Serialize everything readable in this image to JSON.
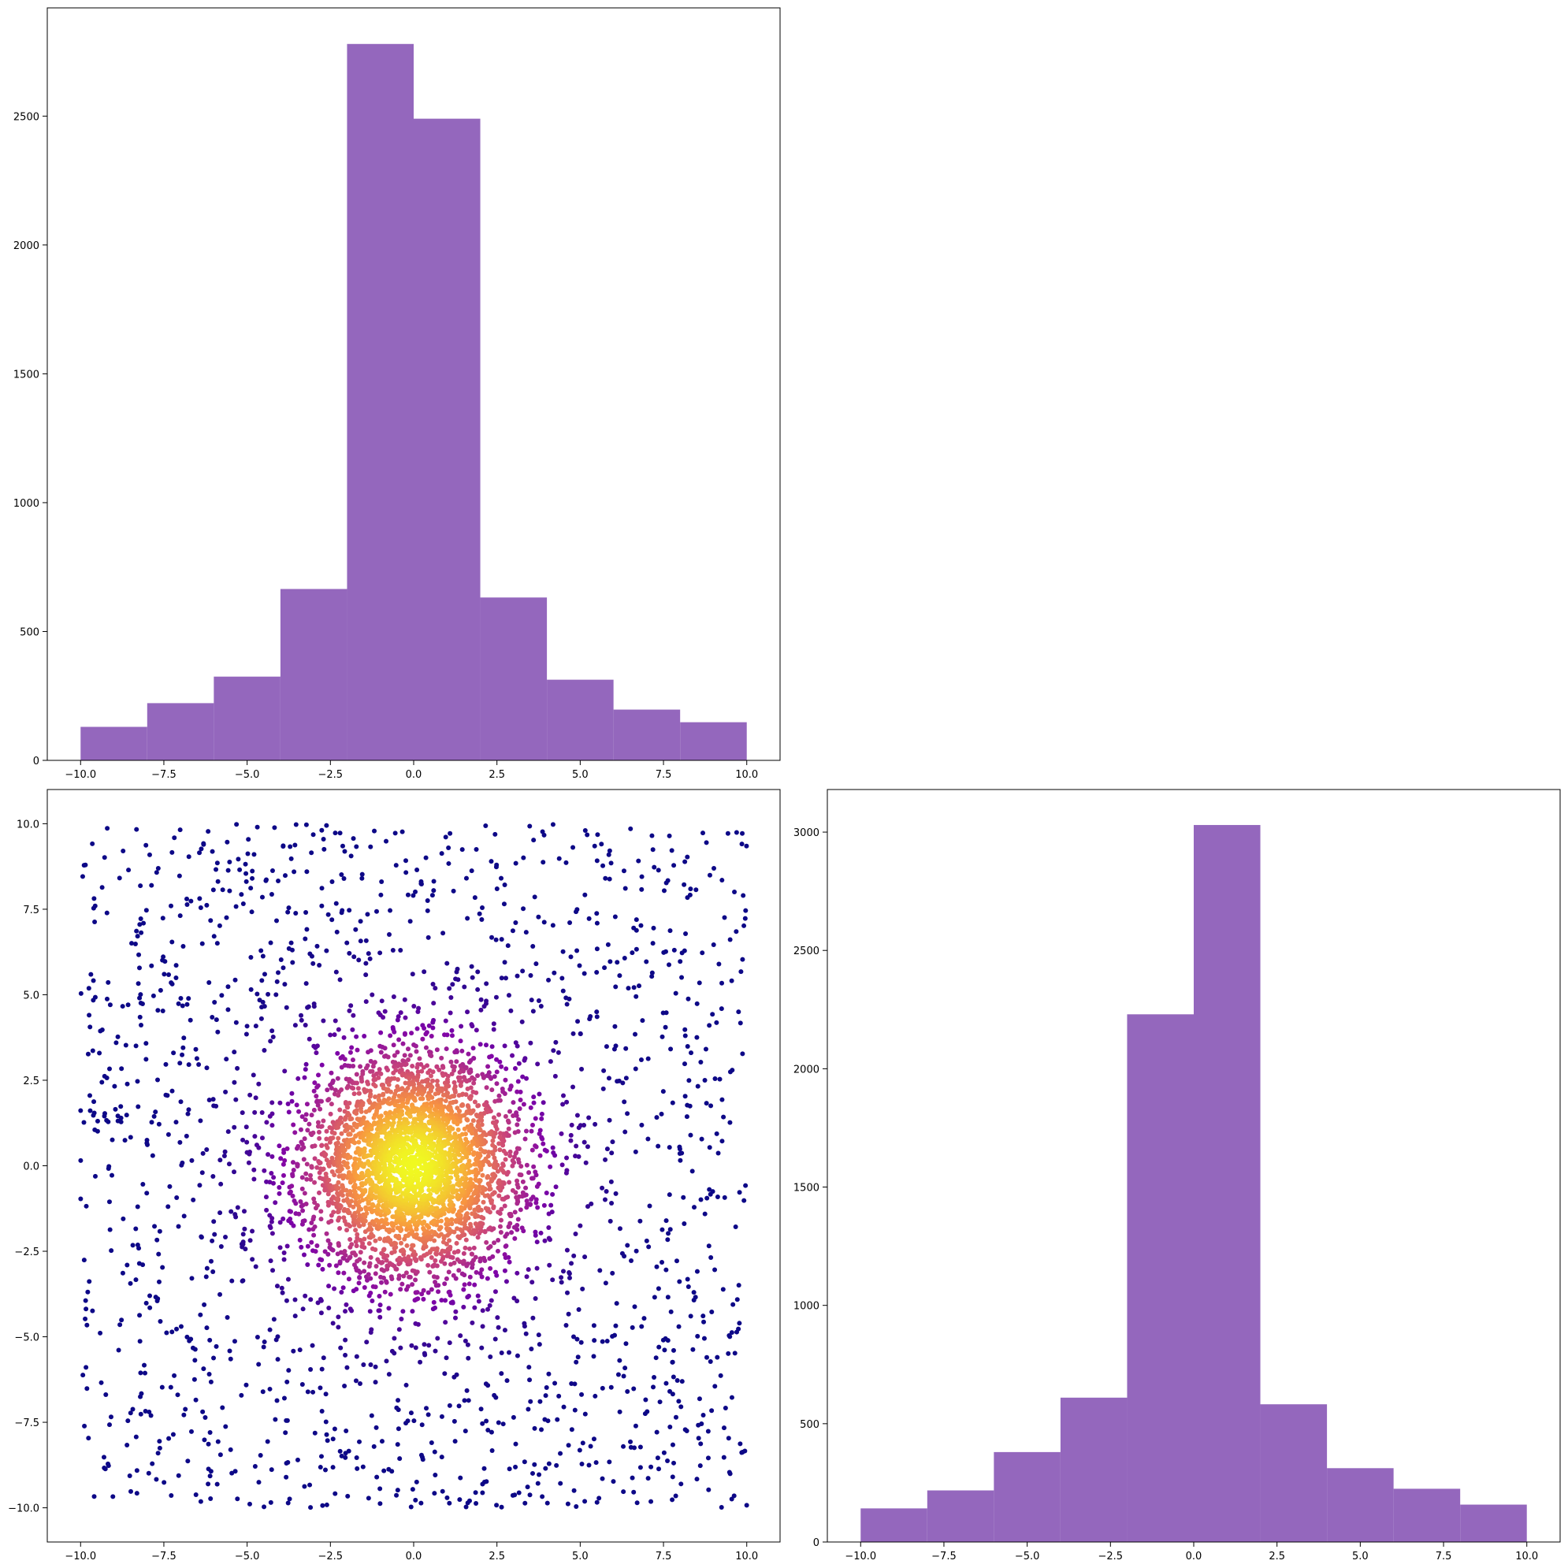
{
  "colors": {
    "hist_fill": "#9467bd",
    "scatter_colormap": "plasma",
    "axes_edge": "#000000",
    "background": "#ffffff"
  },
  "chart_data": [
    {
      "id": "hist-x",
      "type": "bar",
      "bin_edges": [
        -10,
        -8,
        -6,
        -4,
        -2,
        0,
        2,
        4,
        6,
        8,
        10
      ],
      "values": [
        130,
        222,
        325,
        665,
        2780,
        2490,
        632,
        313,
        197,
        148
      ],
      "xlim": [
        -11,
        11
      ],
      "ylim": [
        0,
        2920
      ],
      "xticks": [
        -10.0,
        -7.5,
        -5.0,
        -2.5,
        0.0,
        2.5,
        5.0,
        7.5,
        10.0
      ],
      "xtick_labels": [
        "−10.0",
        "−7.5",
        "−5.0",
        "−2.5",
        "0.0",
        "2.5",
        "5.0",
        "7.5",
        "10.0"
      ],
      "yticks": [
        0,
        500,
        1000,
        1500,
        2000,
        2500
      ],
      "ytick_labels": [
        "0",
        "500",
        "1000",
        "1500",
        "2000",
        "2500"
      ],
      "grid": false
    },
    {
      "id": "scatter-xy",
      "type": "scatter",
      "n_points": 5000,
      "distribution": "dense gaussian core centered at (0,0) with uniform background over [-10,10] x [-10,10]",
      "color_by": "point density (plasma colormap)",
      "xlim": [
        -11,
        11
      ],
      "ylim": [
        -11,
        11
      ],
      "xticks": [
        -10.0,
        -7.5,
        -5.0,
        -2.5,
        0.0,
        2.5,
        5.0,
        7.5,
        10.0
      ],
      "xtick_labels": [
        "−10.0",
        "−7.5",
        "−5.0",
        "−2.5",
        "0.0",
        "2.5",
        "5.0",
        "7.5",
        "10.0"
      ],
      "yticks": [
        -10.0,
        -7.5,
        -5.0,
        -2.5,
        0.0,
        2.5,
        5.0,
        7.5,
        10.0
      ],
      "ytick_labels": [
        "−10.0",
        "−7.5",
        "−5.0",
        "−2.5",
        "0.0",
        "2.5",
        "5.0",
        "7.5",
        "10.0"
      ],
      "grid": false
    },
    {
      "id": "hist-y",
      "type": "bar",
      "bin_edges": [
        -10,
        -8,
        -6,
        -4,
        -2,
        0,
        2,
        4,
        6,
        8,
        10
      ],
      "values": [
        142,
        218,
        380,
        610,
        2230,
        3030,
        582,
        312,
        225,
        158
      ],
      "xlim": [
        -11,
        11
      ],
      "ylim": [
        0,
        3180
      ],
      "xticks": [
        -10.0,
        -7.5,
        -5.0,
        -2.5,
        0.0,
        2.5,
        5.0,
        7.5,
        10.0
      ],
      "xtick_labels": [
        "−10.0",
        "−7.5",
        "−5.0",
        "−2.5",
        "0.0",
        "2.5",
        "5.0",
        "7.5",
        "10.0"
      ],
      "yticks": [
        0,
        500,
        1000,
        1500,
        2000,
        2500,
        3000
      ],
      "ytick_labels": [
        "0",
        "500",
        "1000",
        "1500",
        "2000",
        "2500",
        "3000"
      ],
      "grid": false
    }
  ]
}
